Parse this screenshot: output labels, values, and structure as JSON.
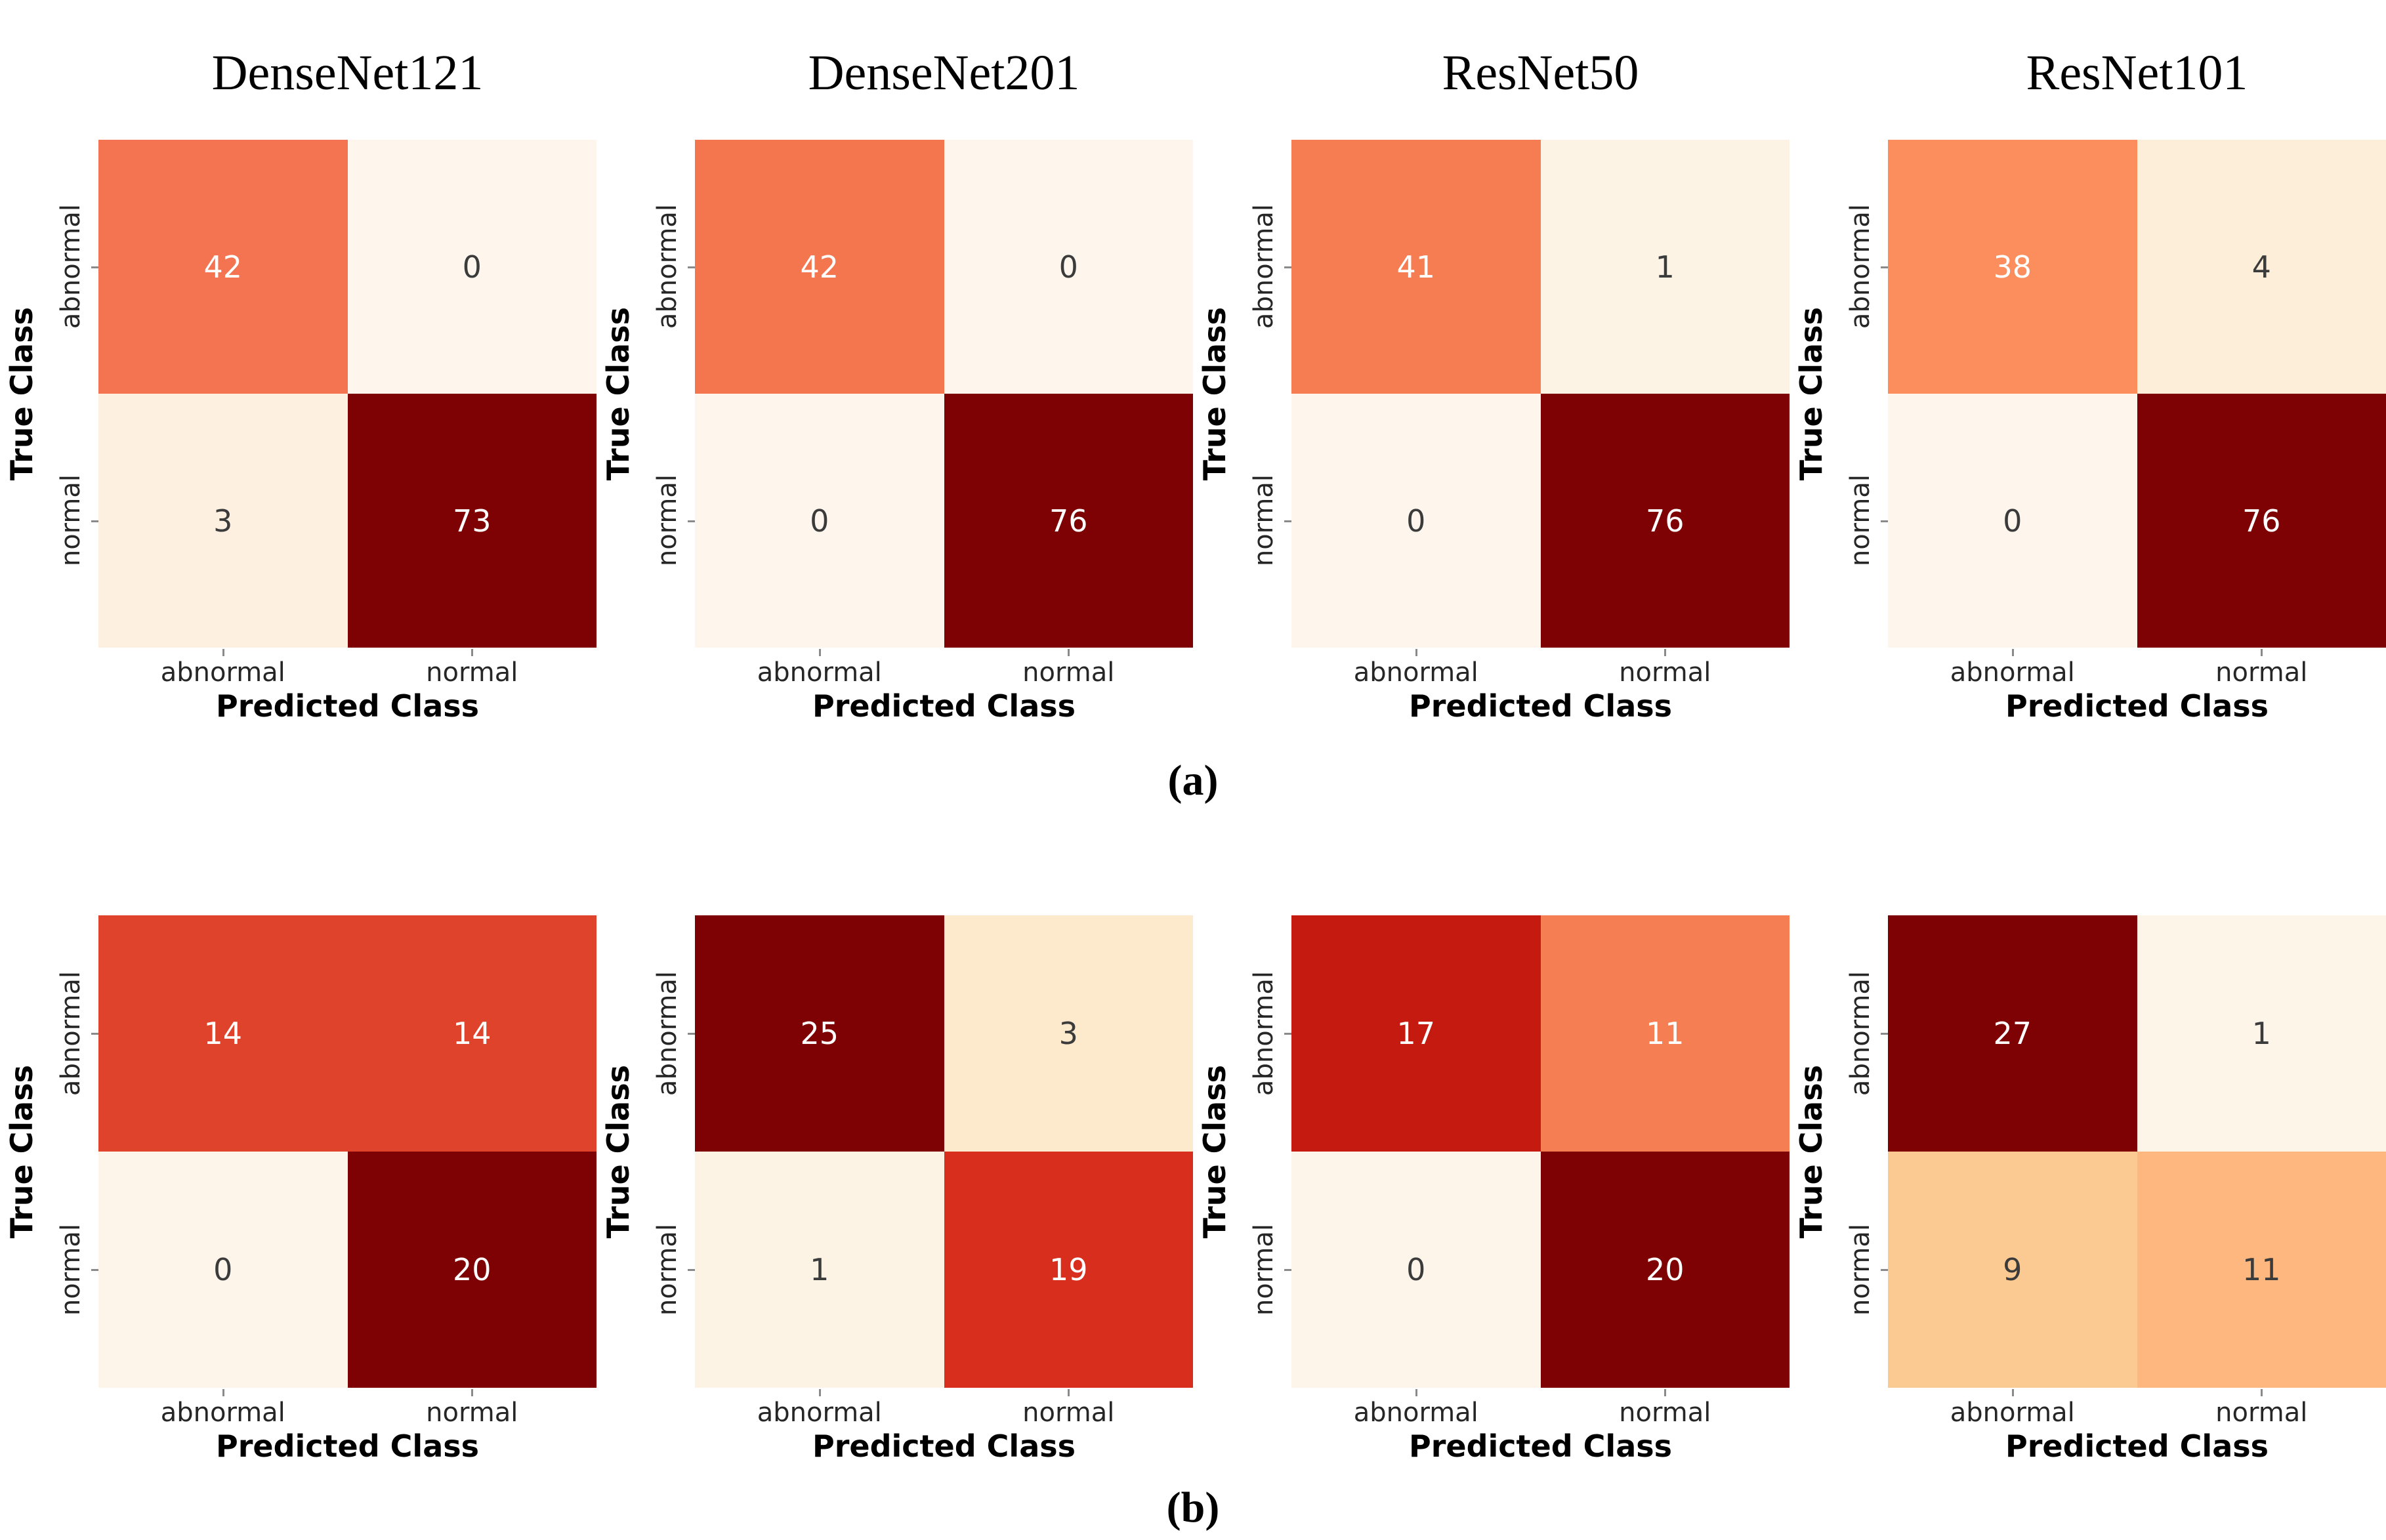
{
  "figure": {
    "col_titles": [
      "DenseNet121",
      "DenseNet201",
      "ResNet50",
      "ResNet101"
    ],
    "captions": {
      "a": "(a)",
      "b": "(b)"
    },
    "axis": {
      "xlabel": "Predicted Class",
      "ylabel": "True Class",
      "xticks": [
        "abnormal",
        "normal"
      ],
      "yticks": [
        "abnormal",
        "normal"
      ]
    },
    "colors": {
      "background": "#ffffff",
      "colormap": "OrRd",
      "dark_value_text": "#3b3b3b",
      "light_value_text": "#ffffff",
      "tick_text": "#262626",
      "axis_label_text": "#000000"
    }
  },
  "chart_data": [
    {
      "type": "heatmap",
      "section": "a",
      "model": "DenseNet121",
      "xlabel": "Predicted Class",
      "ylabel": "True Class",
      "cols": [
        "abnormal",
        "normal"
      ],
      "rows": [
        "abnormal",
        "normal"
      ],
      "values": [
        [
          42,
          0
        ],
        [
          3,
          73
        ]
      ],
      "cell_colors": [
        [
          "#f47350",
          "#fef6ec"
        ],
        [
          "#fdf0e1",
          "#7e0103"
        ]
      ],
      "value_colors": [
        [
          "#ffffff",
          "#3b3b3b"
        ],
        [
          "#3b3b3b",
          "#ffffff"
        ]
      ]
    },
    {
      "type": "heatmap",
      "section": "a",
      "model": "DenseNet201",
      "xlabel": "Predicted Class",
      "ylabel": "True Class",
      "cols": [
        "abnormal",
        "normal"
      ],
      "rows": [
        "abnormal",
        "normal"
      ],
      "values": [
        [
          42,
          0
        ],
        [
          0,
          76
        ]
      ],
      "cell_colors": [
        [
          "#f4764f",
          "#fef6ec"
        ],
        [
          "#fef6ec",
          "#7e0103"
        ]
      ],
      "value_colors": [
        [
          "#ffffff",
          "#3b3b3b"
        ],
        [
          "#3b3b3b",
          "#ffffff"
        ]
      ]
    },
    {
      "type": "heatmap",
      "section": "a",
      "model": "ResNet50",
      "xlabel": "Predicted Class",
      "ylabel": "True Class",
      "cols": [
        "abnormal",
        "normal"
      ],
      "rows": [
        "abnormal",
        "normal"
      ],
      "values": [
        [
          41,
          1
        ],
        [
          0,
          76
        ]
      ],
      "cell_colors": [
        [
          "#f67d52",
          "#fdf3e5"
        ],
        [
          "#fef6ec",
          "#7e0103"
        ]
      ],
      "value_colors": [
        [
          "#ffffff",
          "#3b3b3b"
        ],
        [
          "#3b3b3b",
          "#ffffff"
        ]
      ]
    },
    {
      "type": "heatmap",
      "section": "a",
      "model": "ResNet101",
      "xlabel": "Predicted Class",
      "ylabel": "True Class",
      "cols": [
        "abnormal",
        "normal"
      ],
      "rows": [
        "abnormal",
        "normal"
      ],
      "values": [
        [
          38,
          4
        ],
        [
          0,
          76
        ]
      ],
      "cell_colors": [
        [
          "#fb8e5c",
          "#fdeeda"
        ],
        [
          "#fef6ec",
          "#7e0103"
        ]
      ],
      "value_colors": [
        [
          "#ffffff",
          "#3b3b3b"
        ],
        [
          "#3b3b3b",
          "#ffffff"
        ]
      ]
    },
    {
      "type": "heatmap",
      "section": "b",
      "model": "DenseNet121",
      "xlabel": "Predicted Class",
      "ylabel": "True Class",
      "cols": [
        "abnormal",
        "normal"
      ],
      "rows": [
        "abnormal",
        "normal"
      ],
      "values": [
        [
          14,
          14
        ],
        [
          0,
          20
        ]
      ],
      "cell_colors": [
        [
          "#e0432c",
          "#e0432c"
        ],
        [
          "#fef5ea",
          "#7e0103"
        ]
      ],
      "value_colors": [
        [
          "#ffffff",
          "#ffffff"
        ],
        [
          "#3b3b3b",
          "#ffffff"
        ]
      ]
    },
    {
      "type": "heatmap",
      "section": "b",
      "model": "DenseNet201",
      "xlabel": "Predicted Class",
      "ylabel": "True Class",
      "cols": [
        "abnormal",
        "normal"
      ],
      "rows": [
        "abnormal",
        "normal"
      ],
      "values": [
        [
          25,
          3
        ],
        [
          1,
          19
        ]
      ],
      "cell_colors": [
        [
          "#7e0103",
          "#fde9cb"
        ],
        [
          "#fdf3e5",
          "#d72e1d"
        ]
      ],
      "value_colors": [
        [
          "#ffffff",
          "#3b3b3b"
        ],
        [
          "#3b3b3b",
          "#ffffff"
        ]
      ]
    },
    {
      "type": "heatmap",
      "section": "b",
      "model": "ResNet50",
      "xlabel": "Predicted Class",
      "ylabel": "True Class",
      "cols": [
        "abnormal",
        "normal"
      ],
      "rows": [
        "abnormal",
        "normal"
      ],
      "values": [
        [
          17,
          11
        ],
        [
          0,
          20
        ]
      ],
      "cell_colors": [
        [
          "#c41a10",
          "#f57e52"
        ],
        [
          "#fef5ea",
          "#7e0103"
        ]
      ],
      "value_colors": [
        [
          "#ffffff",
          "#ffffff"
        ],
        [
          "#3b3b3b",
          "#ffffff"
        ]
      ]
    },
    {
      "type": "heatmap",
      "section": "b",
      "model": "ResNet101",
      "xlabel": "Predicted Class",
      "ylabel": "True Class",
      "cols": [
        "abnormal",
        "normal"
      ],
      "rows": [
        "abnormal",
        "normal"
      ],
      "values": [
        [
          27,
          1
        ],
        [
          9,
          11
        ]
      ],
      "cell_colors": [
        [
          "#7e0103",
          "#fef5e9"
        ],
        [
          "#fbc992",
          "#fdb77f"
        ]
      ],
      "value_colors": [
        [
          "#ffffff",
          "#3b3b3b"
        ],
        [
          "#3b3b3b",
          "#3b3b3b"
        ]
      ]
    }
  ]
}
